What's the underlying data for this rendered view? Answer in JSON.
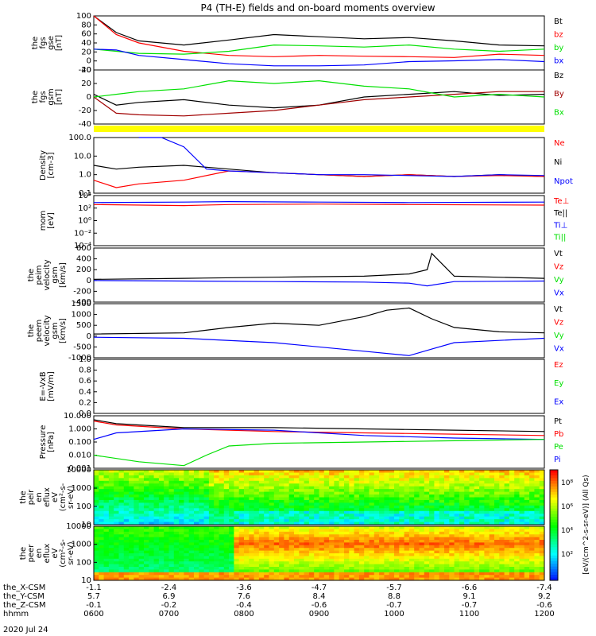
{
  "title": "P4 (TH-E) fields and on-board moments overview",
  "date": "2020 Jul 24",
  "colors": {
    "black": "#000000",
    "red": "#ff0000",
    "green": "#00e000",
    "blue": "#0000ff",
    "darkred": "#a00000",
    "yellow": "#ffff00"
  },
  "chart_data": [
    {
      "type": "line",
      "ylabel": [
        "the",
        "fgs",
        "gse",
        "[nT]"
      ],
      "yticks": [
        "100",
        "80",
        "60",
        "40",
        "20",
        "0",
        "-20"
      ],
      "ylim": [
        -30,
        100
      ],
      "legend": [
        {
          "label": "Bt",
          "color": "black"
        },
        {
          "label": "bz",
          "color": "red"
        },
        {
          "label": "by",
          "color": "green"
        },
        {
          "label": "bx",
          "color": "blue"
        }
      ],
      "series": [
        {
          "name": "Bt",
          "color": "black",
          "x": [
            0,
            0.05,
            0.1,
            0.2,
            0.3,
            0.4,
            0.5,
            0.6,
            0.7,
            0.8,
            0.9,
            1.0
          ],
          "y": [
            100,
            60,
            40,
            30,
            42,
            55,
            50,
            45,
            48,
            40,
            30,
            28
          ]
        },
        {
          "name": "bz",
          "color": "red",
          "x": [
            0,
            0.05,
            0.1,
            0.2,
            0.3,
            0.4,
            0.5,
            0.6,
            0.7,
            0.8,
            0.9,
            1.0
          ],
          "y": [
            100,
            55,
            35,
            15,
            5,
            2,
            5,
            3,
            2,
            0,
            8,
            5
          ]
        },
        {
          "name": "by",
          "color": "green",
          "x": [
            0,
            0.05,
            0.1,
            0.2,
            0.3,
            0.4,
            0.5,
            0.6,
            0.7,
            0.8,
            0.9,
            1.0
          ],
          "y": [
            20,
            15,
            10,
            8,
            15,
            30,
            28,
            25,
            30,
            20,
            15,
            20
          ]
        },
        {
          "name": "bx",
          "color": "blue",
          "x": [
            0,
            0.05,
            0.1,
            0.2,
            0.3,
            0.4,
            0.5,
            0.6,
            0.7,
            0.8,
            0.9,
            1.0
          ],
          "y": [
            20,
            18,
            5,
            -5,
            -15,
            -20,
            -20,
            -18,
            -10,
            -8,
            -5,
            -10
          ]
        }
      ]
    },
    {
      "type": "line",
      "ylabel": [
        "the",
        "fgs",
        "gsm",
        "[nT]"
      ],
      "yticks": [
        "40",
        "20",
        "0",
        "-20",
        "-40"
      ],
      "ylim": [
        -55,
        45
      ],
      "legend": [
        {
          "label": "Bz",
          "color": "black"
        },
        {
          "label": "By",
          "color": "darkred"
        },
        {
          "label": "Bx",
          "color": "green"
        }
      ],
      "series": [
        {
          "name": "Bz",
          "color": "black",
          "x": [
            0,
            0.05,
            0.1,
            0.2,
            0.3,
            0.4,
            0.5,
            0.6,
            0.7,
            0.8,
            0.9,
            1.0
          ],
          "y": [
            0,
            -20,
            -15,
            -10,
            -20,
            -25,
            -20,
            -5,
            0,
            5,
            -2,
            0
          ]
        },
        {
          "name": "By",
          "color": "darkred",
          "x": [
            0,
            0.05,
            0.1,
            0.2,
            0.3,
            0.4,
            0.5,
            0.6,
            0.7,
            0.8,
            0.9,
            1.0
          ],
          "y": [
            -5,
            -35,
            -38,
            -40,
            -35,
            -30,
            -20,
            -10,
            -5,
            0,
            5,
            5
          ]
        },
        {
          "name": "Bx",
          "color": "green",
          "x": [
            0,
            0.05,
            0.1,
            0.2,
            0.3,
            0.4,
            0.5,
            0.6,
            0.7,
            0.8,
            0.9,
            1.0
          ],
          "y": [
            -5,
            0,
            5,
            10,
            25,
            20,
            25,
            15,
            10,
            -5,
            0,
            -5
          ]
        }
      ]
    },
    {
      "type": "line",
      "ylabel": [
        "Density",
        "[cm-3]"
      ],
      "yticks": [
        "100.0",
        "10.0",
        "1.0",
        "0.1"
      ],
      "log": true,
      "ylim": [
        -1,
        2
      ],
      "legend": [
        {
          "label": "Ne",
          "color": "red"
        },
        {
          "label": "Ni",
          "color": "black"
        },
        {
          "label": "Npot",
          "color": "blue"
        }
      ],
      "series": [
        {
          "name": "Ni",
          "color": "black",
          "x": [
            0,
            0.05,
            0.1,
            0.2,
            0.3,
            0.4,
            0.5,
            0.6,
            0.7,
            0.8,
            0.9,
            1.0
          ],
          "y": [
            0.5,
            0.3,
            0.4,
            0.5,
            0.3,
            0.1,
            0.0,
            -0.1,
            0.0,
            -0.1,
            0.0,
            -0.1
          ]
        },
        {
          "name": "Ne",
          "color": "red",
          "x": [
            0,
            0.05,
            0.1,
            0.2,
            0.3,
            0.4,
            0.5,
            0.6,
            0.7,
            0.8,
            0.9,
            1.0
          ],
          "y": [
            -0.3,
            -0.7,
            -0.5,
            -0.3,
            0.2,
            0.1,
            0.0,
            -0.1,
            0.0,
            -0.1,
            -0.05,
            -0.1
          ]
        },
        {
          "name": "Npot",
          "color": "blue",
          "x": [
            0.1,
            0.15,
            0.2,
            0.25,
            0.3,
            0.4,
            0.5,
            0.6,
            0.7,
            0.8,
            0.9,
            1.0
          ],
          "y": [
            2.0,
            2.0,
            1.5,
            0.3,
            0.2,
            0.1,
            0.0,
            0.0,
            -0.05,
            -0.1,
            0.0,
            -0.05
          ]
        }
      ]
    },
    {
      "type": "line",
      "ylabel": [
        "mom",
        "[eV]"
      ],
      "yticks": [
        "10⁴",
        "10²",
        "10⁰",
        "10⁻²",
        "10⁻⁴"
      ],
      "ylim": [
        -5,
        5
      ],
      "legend": [
        {
          "label": "Te⊥",
          "color": "red"
        },
        {
          "label": "Te||",
          "color": "black"
        },
        {
          "label": "Ti⊥",
          "color": "blue"
        },
        {
          "label": "Ti||",
          "color": "green"
        }
      ],
      "series": [
        {
          "name": "Te",
          "color": "red",
          "x": [
            0,
            0.2,
            0.3,
            0.5,
            0.7,
            1.0
          ],
          "y": [
            3.2,
            3.0,
            3.2,
            3.3,
            3.2,
            3.1
          ]
        },
        {
          "name": "Ti",
          "color": "blue",
          "x": [
            0,
            0.2,
            0.3,
            0.5,
            0.7,
            1.0
          ],
          "y": [
            3.6,
            3.7,
            3.8,
            3.7,
            3.6,
            3.7
          ]
        }
      ]
    },
    {
      "type": "line",
      "ylabel": [
        "the",
        "peim",
        "velocity",
        "gsm",
        "[km/s]"
      ],
      "yticks": [
        "600",
        "400",
        "200",
        "0",
        "-200",
        "-400"
      ],
      "ylim": [
        -400,
        600
      ],
      "legend": [
        {
          "label": "Vt",
          "color": "black"
        },
        {
          "label": "Vz",
          "color": "red"
        },
        {
          "label": "Vy",
          "color": "green"
        },
        {
          "label": "Vx",
          "color": "blue"
        }
      ],
      "series": [
        {
          "name": "Vt",
          "color": "black",
          "x": [
            0,
            0.2,
            0.4,
            0.6,
            0.7,
            0.74,
            0.75,
            0.8,
            1.0
          ],
          "y": [
            20,
            40,
            60,
            80,
            120,
            200,
            500,
            80,
            40
          ]
        },
        {
          "name": "Vx",
          "color": "blue",
          "x": [
            0,
            0.2,
            0.4,
            0.6,
            0.7,
            0.74,
            0.8,
            1.0
          ],
          "y": [
            0,
            -10,
            -20,
            -30,
            -50,
            -100,
            -20,
            -10
          ]
        }
      ]
    },
    {
      "type": "line",
      "ylabel": [
        "the",
        "peem",
        "velocity",
        "gsm",
        "[km/s]"
      ],
      "yticks": [
        "1500",
        "1000",
        "500",
        "0",
        "-500",
        "-1000"
      ],
      "ylim": [
        -1000,
        1500
      ],
      "legend": [
        {
          "label": "Vt",
          "color": "black"
        },
        {
          "label": "Vz",
          "color": "red"
        },
        {
          "label": "Vy",
          "color": "green"
        },
        {
          "label": "Vx",
          "color": "blue"
        }
      ],
      "series": [
        {
          "name": "Vt",
          "color": "black",
          "x": [
            0,
            0.2,
            0.3,
            0.4,
            0.5,
            0.6,
            0.65,
            0.7,
            0.75,
            0.8,
            0.9,
            1.0
          ],
          "y": [
            100,
            150,
            400,
            600,
            500,
            900,
            1200,
            1300,
            800,
            400,
            200,
            150
          ]
        },
        {
          "name": "Vx",
          "color": "blue",
          "x": [
            0,
            0.2,
            0.4,
            0.6,
            0.7,
            0.75,
            0.8,
            0.9,
            1.0
          ],
          "y": [
            -50,
            -100,
            -300,
            -700,
            -900,
            -600,
            -300,
            -200,
            -100
          ]
        }
      ]
    },
    {
      "type": "line",
      "ylabel": [
        "E=-VxB",
        "[mV/m]"
      ],
      "yticks": [
        "1.0",
        "0.8",
        "0.6",
        "0.4",
        "0.2",
        "0.0"
      ],
      "ylim": [
        0,
        1
      ],
      "legend": [
        {
          "label": "Ez",
          "color": "red"
        },
        {
          "label": "Ey",
          "color": "green"
        },
        {
          "label": "Ex",
          "color": "blue"
        }
      ],
      "series": []
    },
    {
      "type": "line",
      "ylabel": [
        "Pressure",
        "[nPa]"
      ],
      "yticks": [
        "10.000",
        "1.000",
        "0.100",
        "0.010",
        "0.001"
      ],
      "log": true,
      "ylim": [
        -3,
        1
      ],
      "legend": [
        {
          "label": "Pt",
          "color": "black"
        },
        {
          "label": "Pb",
          "color": "red"
        },
        {
          "label": "Pe",
          "color": "green"
        },
        {
          "label": "Pi",
          "color": "blue"
        }
      ],
      "series": [
        {
          "name": "Pt",
          "color": "black",
          "x": [
            0,
            0.05,
            0.2,
            0.4,
            0.6,
            0.8,
            1.0
          ],
          "y": [
            0.7,
            0.4,
            0.1,
            0.1,
            0.0,
            -0.1,
            -0.2
          ]
        },
        {
          "name": "Pb",
          "color": "red",
          "x": [
            0,
            0.05,
            0.2,
            0.4,
            0.6,
            0.8,
            1.0
          ],
          "y": [
            0.6,
            0.3,
            0.0,
            -0.2,
            -0.3,
            -0.4,
            -0.5
          ]
        },
        {
          "name": "Pi",
          "color": "blue",
          "x": [
            0,
            0.05,
            0.2,
            0.4,
            0.6,
            0.8,
            1.0
          ],
          "y": [
            -0.8,
            -0.3,
            0.0,
            -0.1,
            -0.5,
            -0.7,
            -0.8
          ]
        },
        {
          "name": "Pe",
          "color": "green",
          "x": [
            0,
            0.1,
            0.2,
            0.25,
            0.3,
            0.4,
            0.6,
            0.8,
            1.0
          ],
          "y": [
            -2.0,
            -2.5,
            -2.8,
            -2.0,
            -1.3,
            -1.1,
            -1.0,
            -0.9,
            -0.8
          ]
        }
      ]
    },
    {
      "type": "heatmap",
      "ylabel": [
        "the",
        "peir",
        "en",
        "eflux",
        "eV",
        "(cm²-s-",
        "sr-eV)"
      ],
      "yticks": [
        "10000",
        "1000",
        "100",
        "10"
      ]
    },
    {
      "type": "heatmap",
      "ylabel": [
        "the",
        "peer",
        "en",
        "eflux",
        "eV",
        "(cm²-s-",
        "sr-eV)"
      ],
      "yticks": [
        "10000",
        "1000",
        "100",
        "10"
      ]
    }
  ],
  "colorbar": {
    "label": "[eV/(cm^2-s-sr-eV)] (All Qs)",
    "ticks": [
      "10⁸",
      "10⁶",
      "10⁴",
      "10²"
    ]
  },
  "xaxis": {
    "ticks": [
      {
        "xcsm": "-1.1",
        "ycsm": "5.7",
        "zcsm": "-0.1",
        "hhmm": "0600"
      },
      {
        "xcsm": "-2.4",
        "ycsm": "6.9",
        "zcsm": "-0.2",
        "hhmm": "0700"
      },
      {
        "xcsm": "-3.6",
        "ycsm": "7.6",
        "zcsm": "-0.4",
        "hhmm": "0800"
      },
      {
        "xcsm": "-4.7",
        "ycsm": "8.4",
        "zcsm": "-0.6",
        "hhmm": "0900"
      },
      {
        "xcsm": "-5.7",
        "ycsm": "8.8",
        "zcsm": "-0.7",
        "hhmm": "1000"
      },
      {
        "xcsm": "-6.6",
        "ycsm": "9.1",
        "zcsm": "-0.7",
        "hhmm": "1100"
      },
      {
        "xcsm": "-7.4",
        "ycsm": "9.2",
        "zcsm": "-0.6",
        "hhmm": "1200"
      }
    ],
    "row_labels": [
      "the_X-CSM",
      "the_Y-CSM",
      "the_Z-CSM",
      "hhmm"
    ]
  }
}
